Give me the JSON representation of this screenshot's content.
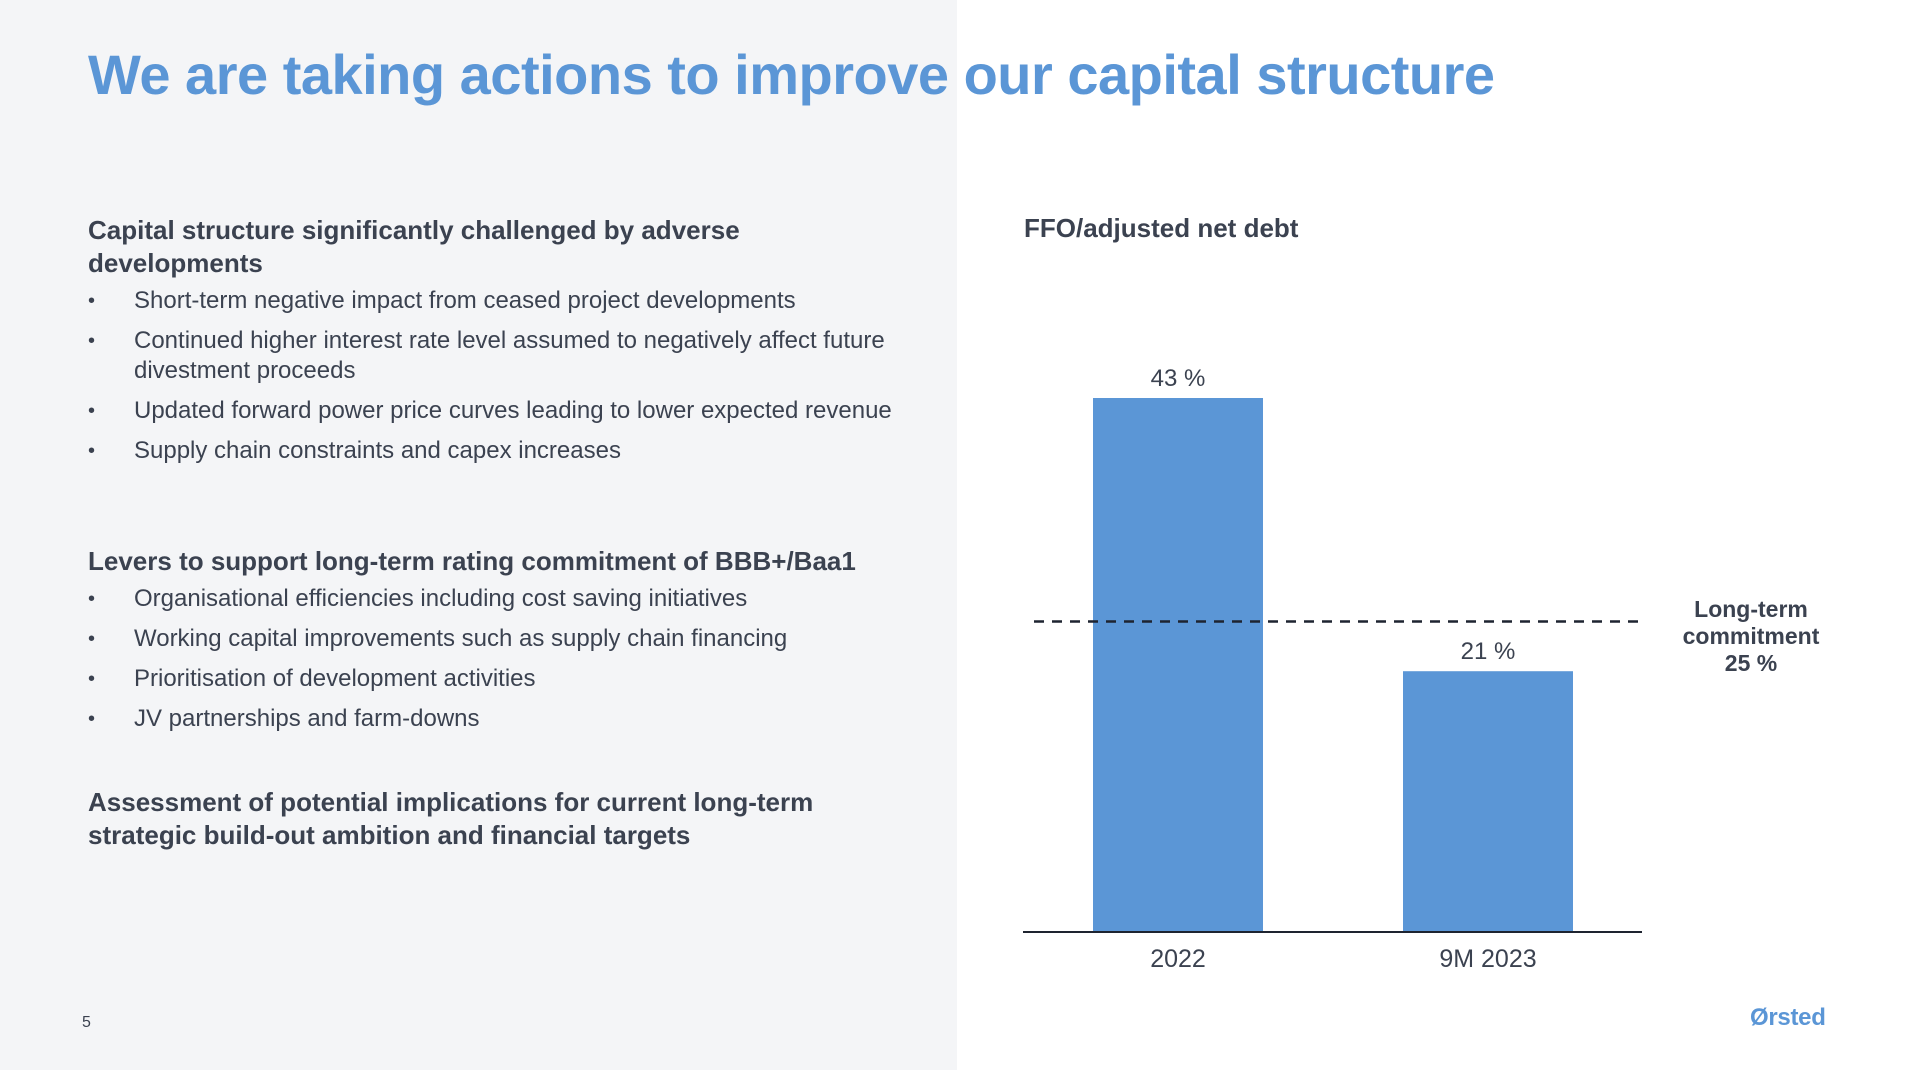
{
  "slide": {
    "title": "We are taking actions to improve our capital structure",
    "page_number": "5",
    "logo_text": "Ørsted"
  },
  "sections": [
    {
      "heading": "Capital structure significantly challenged by adverse developments",
      "bullets": [
        "Short-term negative impact from ceased project developments",
        "Continued higher interest rate level assumed to negatively affect future divestment proceeds",
        "Updated forward power price curves leading to lower expected revenue",
        "Supply chain constraints and capex increases"
      ]
    },
    {
      "heading": "Levers to support long-term rating commitment of BBB+/Baa1",
      "bullets": [
        "Organisational efficiencies including cost saving initiatives",
        "Working capital improvements such as supply chain financing",
        "Prioritisation of development activities",
        "JV partnerships and farm-downs"
      ]
    },
    {
      "heading": "Assessment of potential implications for current long-term strategic build-out ambition and financial targets",
      "bullets": []
    }
  ],
  "colors": {
    "accent": "#5b96d6",
    "bar": "#5b96d6",
    "text": "#3b4250",
    "left_panel_bg": "#f4f5f7"
  },
  "chart_data": {
    "type": "bar",
    "title": "FFO/adjusted net debt",
    "categories": [
      "2022",
      "9M 2023"
    ],
    "values": [
      43,
      21
    ],
    "value_labels": [
      "43 %",
      "21 %"
    ],
    "unit": "%",
    "ylim": [
      0,
      45
    ],
    "grid": false,
    "reference_line": {
      "value": 25,
      "style": "dashed",
      "label_lines": [
        "Long-term",
        "commitment",
        "25 %"
      ]
    }
  }
}
